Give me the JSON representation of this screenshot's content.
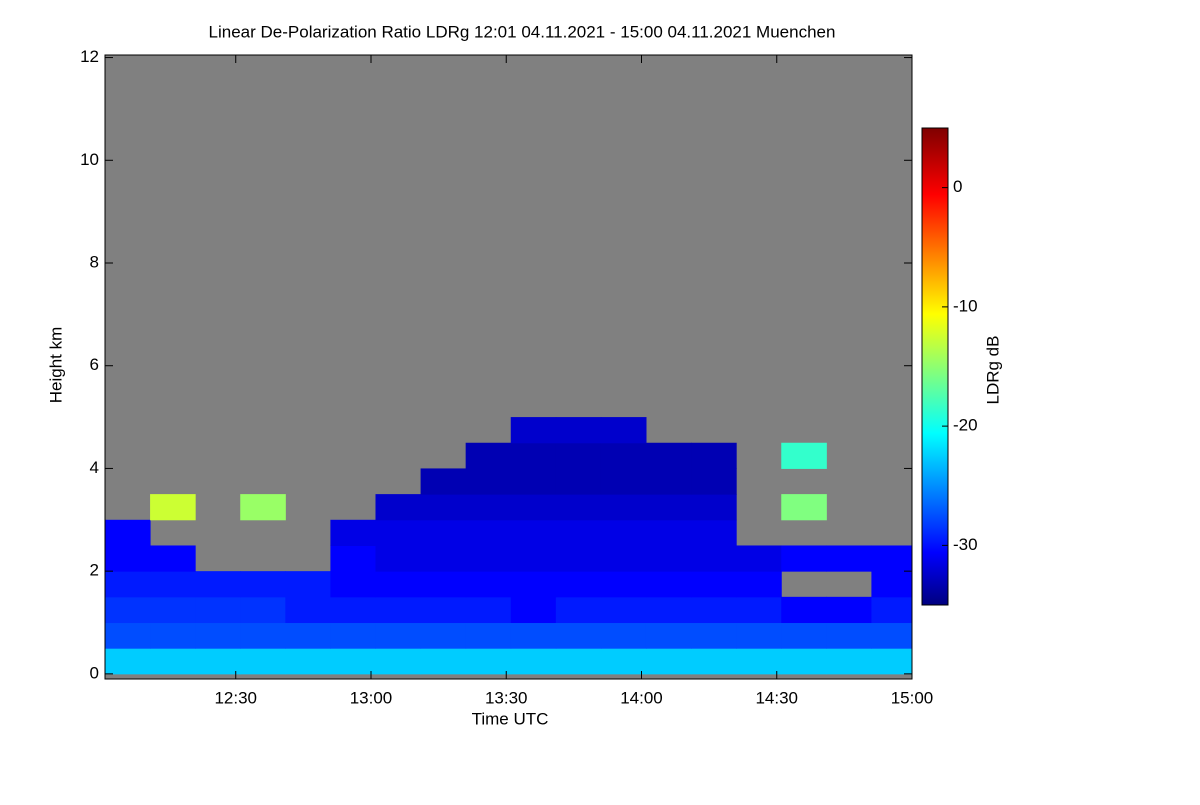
{
  "chart_data": {
    "type": "heatmap",
    "title": "Linear De-Polarization Ratio LDRg   12:01 04.11.2021 - 15:00 04.11.2021 Muenchen",
    "x_label": "Time UTC",
    "y_label": "Height km",
    "colorbar_label": "LDRg dB",
    "x": [
      12.1,
      12.2667,
      12.4333,
      12.6,
      12.7667,
      12.9333,
      13.1,
      13.2667,
      13.4333,
      13.6,
      13.7667,
      13.9333,
      14.1,
      14.2667,
      14.4333,
      14.6,
      14.7667,
      14.9333
    ],
    "y": [
      0.25,
      0.75,
      1.25,
      1.75,
      2.25,
      2.75,
      3.25,
      3.75,
      4.25,
      4.75
    ],
    "z": [
      [
        -22,
        -22,
        -22,
        -22,
        -22,
        -22,
        -22,
        -22,
        -22,
        -22,
        -22,
        -22,
        -22,
        -22,
        -22,
        -22,
        -22,
        -22
      ],
      [
        -27,
        -27,
        -27,
        -27,
        -27,
        -27,
        -27,
        -27,
        -27,
        -27,
        -27,
        -27,
        -27,
        -27,
        -27,
        -27,
        -27,
        -27
      ],
      [
        -28,
        -28,
        -28,
        -28,
        -29,
        -29,
        -29,
        -29,
        -29,
        -30,
        -29,
        -29,
        -29,
        -29,
        -29,
        -30,
        -30,
        -29
      ],
      [
        -29,
        -29,
        -29,
        -29,
        -29,
        -30,
        -30,
        -30,
        -30,
        -30,
        -30,
        -30,
        -30,
        -30,
        -30,
        null,
        null,
        -30
      ],
      [
        -30,
        -30,
        null,
        null,
        null,
        -30,
        -31,
        -31,
        -31,
        -31,
        -31,
        -31,
        -31,
        -31,
        -31,
        -30,
        -30,
        -30
      ],
      [
        -30,
        null,
        null,
        null,
        null,
        -31,
        -31,
        -31,
        -31,
        -31,
        -31,
        -31,
        -31,
        -31,
        null,
        null,
        null,
        null
      ],
      [
        null,
        -12,
        null,
        -14,
        null,
        null,
        -32,
        -32,
        -32,
        -32,
        -32,
        -32,
        -32,
        -32,
        null,
        -15,
        null,
        null
      ],
      [
        null,
        null,
        null,
        null,
        null,
        null,
        null,
        -33,
        -33,
        -33,
        -33,
        -33,
        -33,
        -33,
        null,
        null,
        null,
        null
      ],
      [
        null,
        null,
        null,
        null,
        null,
        null,
        null,
        null,
        -33,
        -33,
        -33,
        -33,
        -33,
        -33,
        null,
        -18,
        null,
        null
      ],
      [
        null,
        null,
        null,
        null,
        null,
        null,
        null,
        null,
        null,
        -32,
        -32,
        -32,
        null,
        null,
        null,
        null,
        null,
        null
      ]
    ],
    "xlim": [
      12.0167,
      15.0
    ],
    "ylim": [
      -0.1,
      12.05
    ],
    "xticks": [
      {
        "value": 12.5,
        "label": "12:30"
      },
      {
        "value": 13.0,
        "label": "13:00"
      },
      {
        "value": 13.5,
        "label": "13:30"
      },
      {
        "value": 14.0,
        "label": "14:00"
      },
      {
        "value": 14.5,
        "label": "14:30"
      },
      {
        "value": 15.0,
        "label": "15:00"
      }
    ],
    "yticks": [
      0,
      2,
      4,
      6,
      8,
      10,
      12
    ],
    "clim": [
      -35,
      5
    ],
    "cticks": [
      -30,
      -20,
      -10,
      0
    ],
    "colormap": "jet",
    "background": "#808080"
  }
}
